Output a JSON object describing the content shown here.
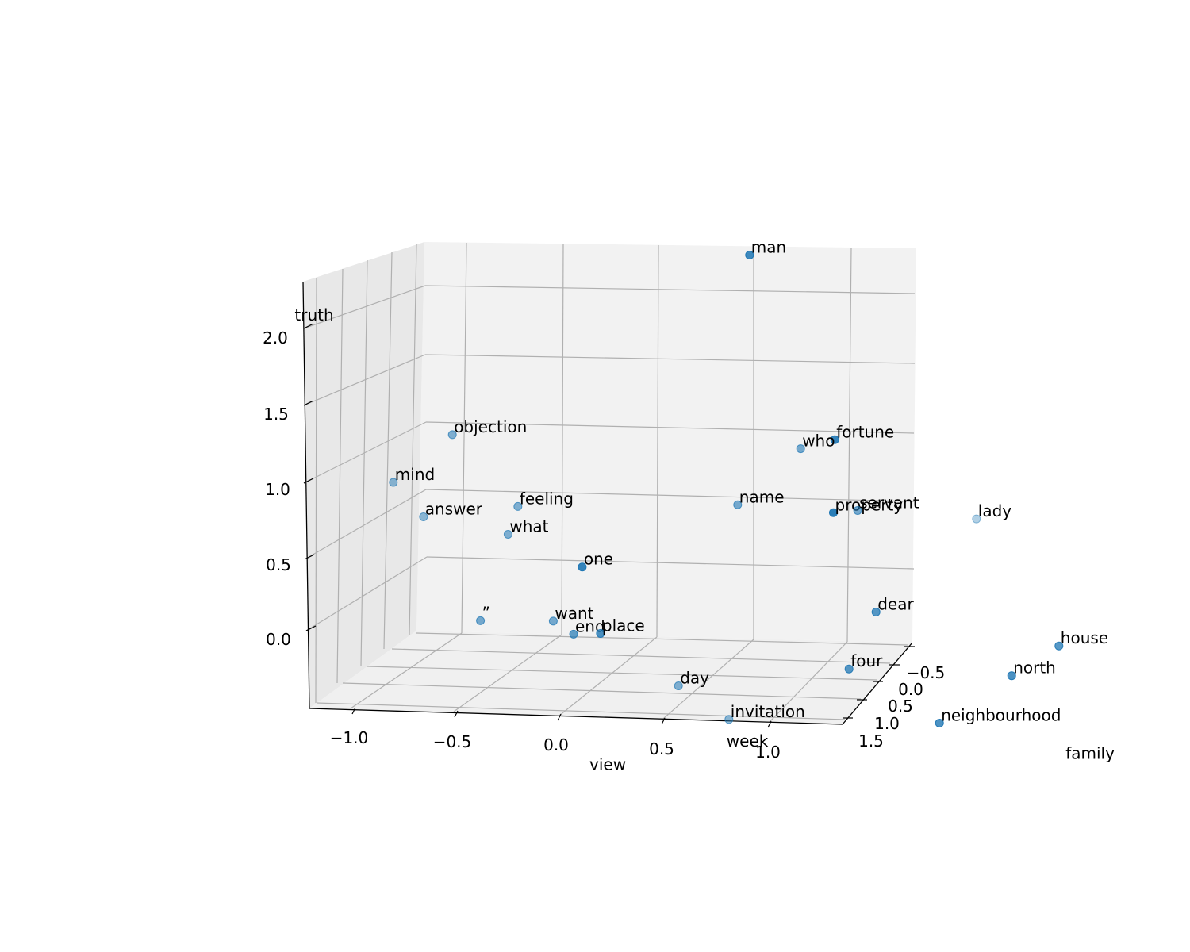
{
  "chart_data": {
    "type": "scatter",
    "projection": "3d",
    "title": "",
    "xlabel": "",
    "ylabel": "",
    "zlabel": "",
    "grid": true,
    "marker_color": "#1f77b4",
    "x_ticks": [
      "−1.0",
      "−0.5",
      "0.0",
      "0.5",
      "1.0"
    ],
    "y_ticks": [
      "−0.5",
      "0.0",
      "0.5",
      "1.0",
      "1.5"
    ],
    "z_ticks": [
      "0.0",
      "0.5",
      "1.0",
      "1.5",
      "2.0"
    ],
    "points": [
      {
        "word": "man",
        "x": 0.6,
        "y": -0.5,
        "z": 2.15,
        "alpha": 0.85
      },
      {
        "word": "truth",
        "x": -1.8,
        "y": -0.2,
        "z": 1.65,
        "alpha": 0.0
      },
      {
        "word": "objection",
        "x": -1.15,
        "y": 0.4,
        "z": 1.0,
        "alpha": 0.55
      },
      {
        "word": "feeling",
        "x": -0.95,
        "y": 0.9,
        "z": 0.6,
        "alpha": 0.55
      },
      {
        "word": "mind",
        "x": -1.45,
        "y": 0.4,
        "z": 0.65,
        "alpha": 0.5
      },
      {
        "word": "answer",
        "x": -1.35,
        "y": 0.6,
        "z": 0.45,
        "alpha": 0.5
      },
      {
        "word": "what",
        "x": -1.0,
        "y": 0.9,
        "z": 0.4,
        "alpha": 0.55
      },
      {
        "word": "fortune",
        "x": 0.9,
        "y": 0.0,
        "z": 0.95,
        "alpha": 0.9
      },
      {
        "word": "who",
        "x": 0.7,
        "y": 0.1,
        "z": 0.9,
        "alpha": 0.6
      },
      {
        "word": "name",
        "x": 0.3,
        "y": 0.4,
        "z": 0.55,
        "alpha": 0.6
      },
      {
        "word": "property",
        "x": 0.8,
        "y": 0.35,
        "z": 0.5,
        "alpha": 0.95
      },
      {
        "word": "servant",
        "x": 0.95,
        "y": 0.25,
        "z": 0.5,
        "alpha": 0.6
      },
      {
        "word": "lady",
        "x": 1.7,
        "y": -0.3,
        "z": 0.35,
        "alpha": 0.35
      },
      {
        "word": "one",
        "x": -0.45,
        "y": 0.25,
        "z": 0.05,
        "alpha": 0.9
      },
      {
        "word": "want",
        "x": -0.85,
        "y": 1.2,
        "z": -0.15,
        "alpha": 0.6
      },
      {
        "word": "end",
        "x": -0.8,
        "y": 1.4,
        "z": -0.2,
        "alpha": 0.7
      },
      {
        "word": "place",
        "x": -0.65,
        "y": 1.35,
        "z": -0.2,
        "alpha": 0.8
      },
      {
        "word": "”",
        "x": -1.3,
        "y": 1.5,
        "z": -0.1,
        "alpha": 0.6
      },
      {
        "word": "dear",
        "x": 0.95,
        "y": 0.6,
        "z": -0.15,
        "alpha": 0.75
      },
      {
        "word": "house",
        "x": 1.8,
        "y": 0.9,
        "z": -0.3,
        "alpha": 0.75
      },
      {
        "word": "north",
        "x": 1.4,
        "y": 1.5,
        "z": -0.4,
        "alpha": 0.8
      },
      {
        "word": "four",
        "x": 0.6,
        "y": 1.4,
        "z": -0.4,
        "alpha": 0.75
      },
      {
        "word": "day",
        "x": -0.4,
        "y": 1.9,
        "z": -0.45,
        "alpha": 0.55
      },
      {
        "word": "invitation",
        "x": -0.25,
        "y": 2.3,
        "z": -0.6,
        "alpha": 0.5
      },
      {
        "word": "neighbourhood",
        "x": 0.9,
        "y": 2.0,
        "z": -0.65,
        "alpha": 0.8
      },
      {
        "word": "week",
        "x": -0.35,
        "y": 2.6,
        "z": -0.75,
        "alpha": 0.0
      },
      {
        "word": "family",
        "x": 1.4,
        "y": 2.5,
        "z": -0.8,
        "alpha": 0.0
      },
      {
        "word": "view",
        "x": -1.1,
        "y": 2.8,
        "z": -0.9,
        "alpha": 0.0
      }
    ]
  }
}
